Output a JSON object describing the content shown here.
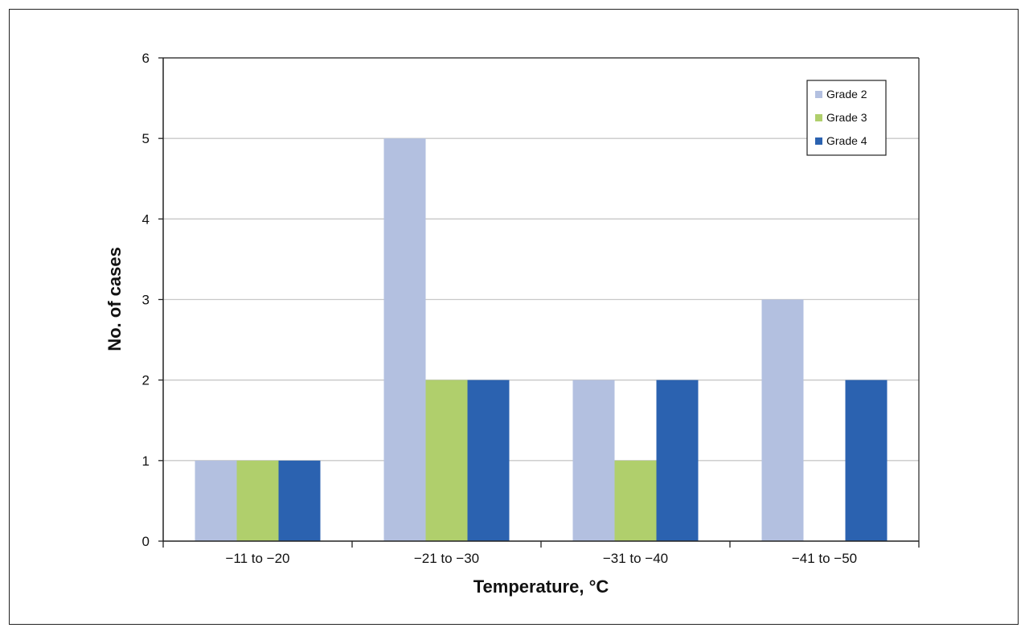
{
  "chart_data": {
    "type": "bar",
    "categories": [
      "−11 to −20",
      "−21 to −30",
      "−31 to −40",
      "−41 to −50"
    ],
    "series": [
      {
        "name": "Grade 2",
        "values": [
          1,
          5,
          2,
          3
        ],
        "color": "#b3c0e0"
      },
      {
        "name": "Grade 3",
        "values": [
          1,
          2,
          1,
          0
        ],
        "color": "#b0cf6c"
      },
      {
        "name": "Grade 4",
        "values": [
          1,
          2,
          2,
          2
        ],
        "color": "#2b62b0"
      }
    ],
    "xlabel": "Temperature, °C",
    "ylabel": "No. of cases",
    "ylim": [
      0,
      6
    ],
    "yticks": [
      0,
      1,
      2,
      3,
      4,
      5,
      6
    ],
    "grid": true,
    "legend_position": "top-right"
  },
  "colors": {
    "gridline": "#c8c8c8",
    "axis": "#222222"
  }
}
